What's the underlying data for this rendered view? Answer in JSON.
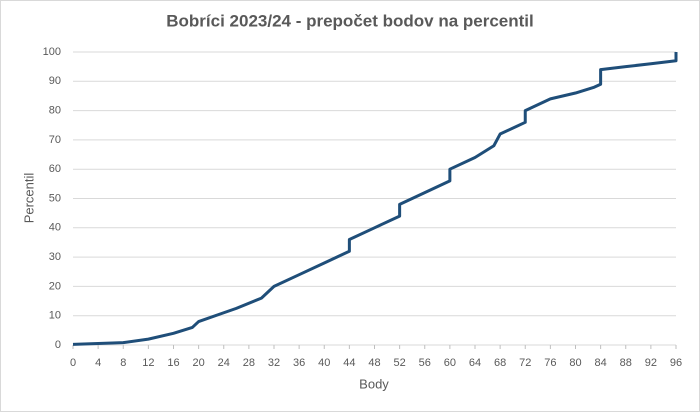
{
  "chart_data": {
    "type": "line",
    "title": "Bobríci 2023/24 - prepočet bodov na percentil",
    "xlabel": "Body",
    "ylabel": "Percentil",
    "x": [
      0,
      4,
      8,
      12,
      16,
      19,
      20,
      24,
      26,
      30,
      32,
      36,
      40,
      44,
      44,
      48,
      52,
      52,
      56,
      60,
      60,
      64,
      67,
      68,
      72,
      72,
      76,
      80,
      83,
      84,
      84,
      88,
      92,
      96,
      96
    ],
    "series": [
      {
        "name": "Percentil",
        "color": "#1f4e79",
        "values": [
          0.2,
          0.5,
          0.8,
          2,
          4,
          6,
          8,
          11,
          12.5,
          16,
          20,
          24,
          28,
          32,
          36,
          40,
          44,
          48,
          52,
          56,
          60,
          64,
          68,
          72,
          76,
          80,
          84,
          86,
          88,
          89,
          94,
          95,
          96,
          97,
          100
        ]
      }
    ],
    "xlim": [
      0,
      96
    ],
    "xticks": [
      0,
      4,
      8,
      12,
      16,
      20,
      24,
      28,
      32,
      36,
      40,
      44,
      48,
      52,
      56,
      60,
      64,
      68,
      72,
      76,
      80,
      84,
      88,
      92,
      96
    ],
    "ylim": [
      0,
      100
    ],
    "yticks": [
      0,
      10,
      20,
      30,
      40,
      50,
      60,
      70,
      80,
      90,
      100
    ],
    "grid": true
  }
}
